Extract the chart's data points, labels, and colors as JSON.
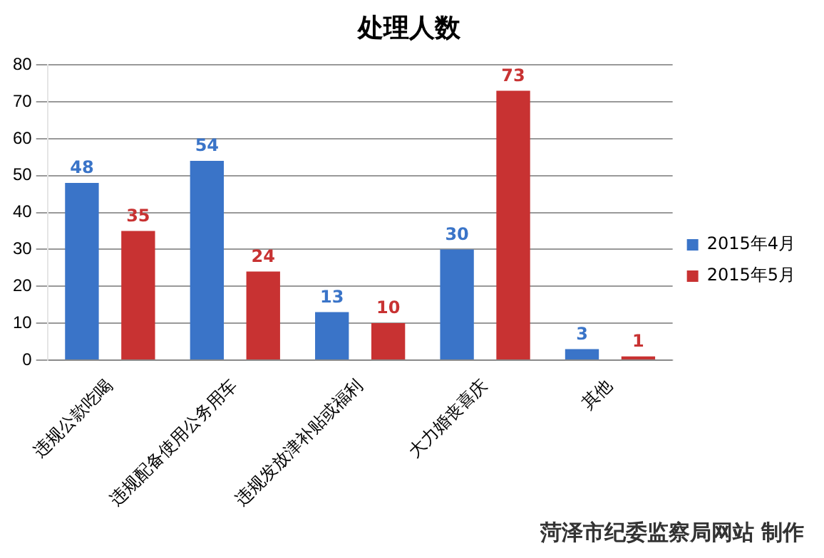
{
  "chart_data": {
    "type": "bar",
    "title": "处理人数",
    "categories": [
      "违规公款吃喝",
      "违规配备使用公务用车",
      "违规发放津补贴或福利",
      "大力婚丧喜庆",
      "其他"
    ],
    "series": [
      {
        "name": "2015年4月",
        "color": "#3a74c8",
        "values": [
          48,
          54,
          13,
          30,
          3
        ]
      },
      {
        "name": "2015年5月",
        "color": "#c83232",
        "values": [
          35,
          24,
          10,
          73,
          1
        ]
      }
    ],
    "ylim": [
      0,
      80
    ],
    "yticks": [
      0,
      10,
      20,
      30,
      40,
      50,
      60,
      70,
      80
    ],
    "grid": "y",
    "legend": "right",
    "data_labels": true,
    "annotations": [
      "菏泽市纪委监察局网站 制作"
    ]
  }
}
